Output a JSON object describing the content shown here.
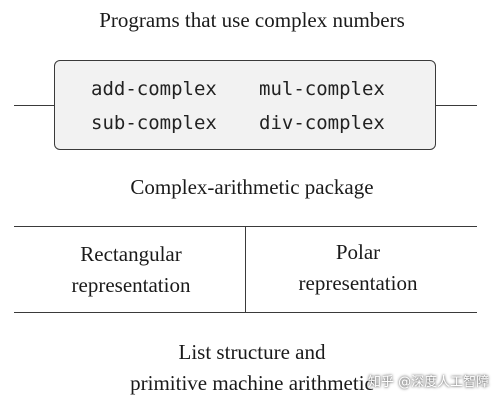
{
  "diagram": {
    "top_title": "Programs that use complex numbers",
    "procedures": {
      "add": "add-complex",
      "mul": "mul-complex",
      "sub": "sub-complex",
      "div": "div-complex"
    },
    "package_label": "Complex-arithmetic package",
    "representations": {
      "rectangular": [
        "Rectangular",
        "representation"
      ],
      "polar": [
        "Polar",
        "representation"
      ]
    },
    "bottom_label": [
      "List structure and",
      "primitive machine arithmetic"
    ]
  },
  "watermark": {
    "text": "知乎 @深度人工智障"
  }
}
